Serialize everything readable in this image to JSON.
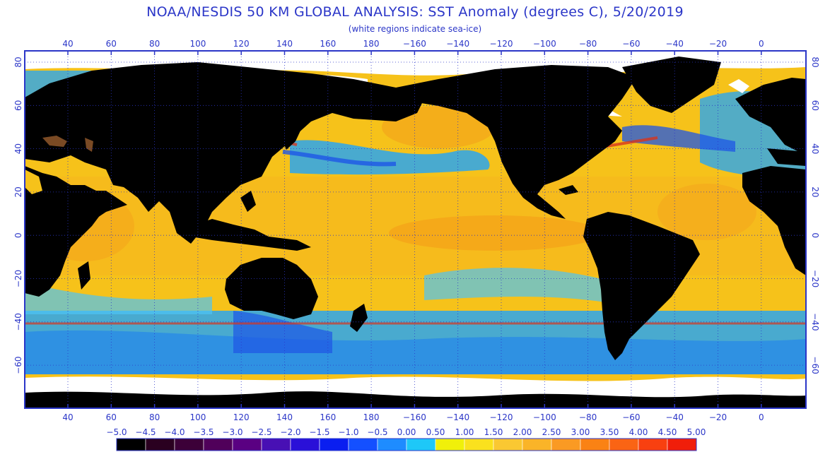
{
  "header": {
    "title": "NOAA/NESDIS 50 KM GLOBAL ANALYSIS: SST Anomaly (degrees C), 5/20/2019",
    "subtitle": "(white regions indicate sea-ice)"
  },
  "map": {
    "lon_labels": [
      "40",
      "60",
      "80",
      "100",
      "120",
      "140",
      "160",
      "180",
      "−160",
      "−140",
      "−120",
      "−100",
      "−80",
      "−60",
      "−40",
      "−20",
      "0"
    ],
    "lat_labels": [
      "80",
      "60",
      "40",
      "20",
      "0",
      "−20",
      "−40",
      "−60"
    ],
    "colors": {
      "land": "#000000",
      "ice": "#ffffff",
      "warm": "#f6c21a",
      "cool": "#2aa6f0",
      "frame": "#2b36c8"
    }
  },
  "colorbar": {
    "labels": [
      "−5.0",
      "−4.5",
      "−4.0",
      "−3.5",
      "−3.0",
      "−2.5",
      "−2.0",
      "−1.5",
      "−1.0",
      "−0.5",
      "0.00",
      "0.50",
      "1.00",
      "1.50",
      "2.00",
      "2.50",
      "3.00",
      "3.50",
      "4.00",
      "4.50",
      "5.00"
    ],
    "colors": [
      "#000000",
      "#2a0020",
      "#3c0038",
      "#50005a",
      "#5a0082",
      "#4810b4",
      "#2a10d8",
      "#0a1ef0",
      "#1450ff",
      "#1e8cff",
      "#1ec8f8",
      "#f0f00a",
      "#fae11e",
      "#fac832",
      "#fab428",
      "#fa9a23",
      "#fa8214",
      "#fa6414",
      "#f84010",
      "#f01e0a"
    ]
  }
}
